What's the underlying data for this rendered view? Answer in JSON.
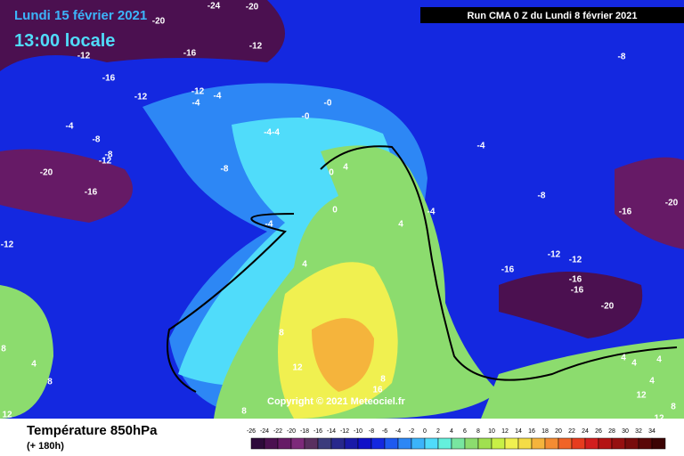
{
  "header": {
    "date": "Lundi 15 février 2021",
    "time": "13:00 locale",
    "run": "Run CMA 0 Z du Lundi 8 février 2021"
  },
  "copyright": "Copyright © 2021 Meteociel.fr",
  "footer": {
    "title": "Température 850hPa",
    "lead": "(+ 180h)"
  },
  "scale": {
    "ticks": [
      -26,
      -24,
      -22,
      -20,
      -18,
      -16,
      -14,
      -12,
      -10,
      -8,
      -6,
      -4,
      -2,
      0,
      2,
      4,
      6,
      8,
      10,
      12,
      14,
      16,
      18,
      20,
      22,
      24,
      26,
      28,
      30,
      32,
      34
    ],
    "colors": [
      "#2e0a3a",
      "#4b1050",
      "#661a66",
      "#7d2a7a",
      "#5a3060",
      "#3c3c7c",
      "#28288c",
      "#1a1aa8",
      "#1010c8",
      "#1428e0",
      "#1e5af0",
      "#2d87f5",
      "#3cb4fa",
      "#50dcfa",
      "#64f0dc",
      "#78e6a0",
      "#8cdc6e",
      "#a0e050",
      "#c8f046",
      "#f0f050",
      "#f5dc46",
      "#f5b43c",
      "#f58c32",
      "#f06428",
      "#e63c1e",
      "#d21e1e",
      "#b41414",
      "#961010",
      "#780c0c",
      "#5a0808",
      "#3c0404"
    ]
  },
  "labels": [
    "-24",
    "-20",
    "-20",
    "-12",
    "-16",
    "-12",
    "-16",
    "-12",
    "-12",
    "-4",
    "-4",
    "-8",
    "-0",
    "-0",
    "-4-4",
    "-4",
    "-8",
    "-8",
    "-12",
    "-4",
    "-20",
    "-16",
    "-8",
    "0",
    "4",
    "-8",
    "-16",
    "-20",
    "-4",
    "-4",
    "0",
    "4",
    "-12",
    "-12",
    "-12",
    "-16",
    "-16",
    "-16",
    "-20",
    "4",
    "8",
    "8",
    "4",
    "12",
    "8",
    "4",
    "4",
    "4",
    "4",
    "8",
    "12",
    "16",
    "8",
    "12",
    "12",
    "8"
  ]
}
